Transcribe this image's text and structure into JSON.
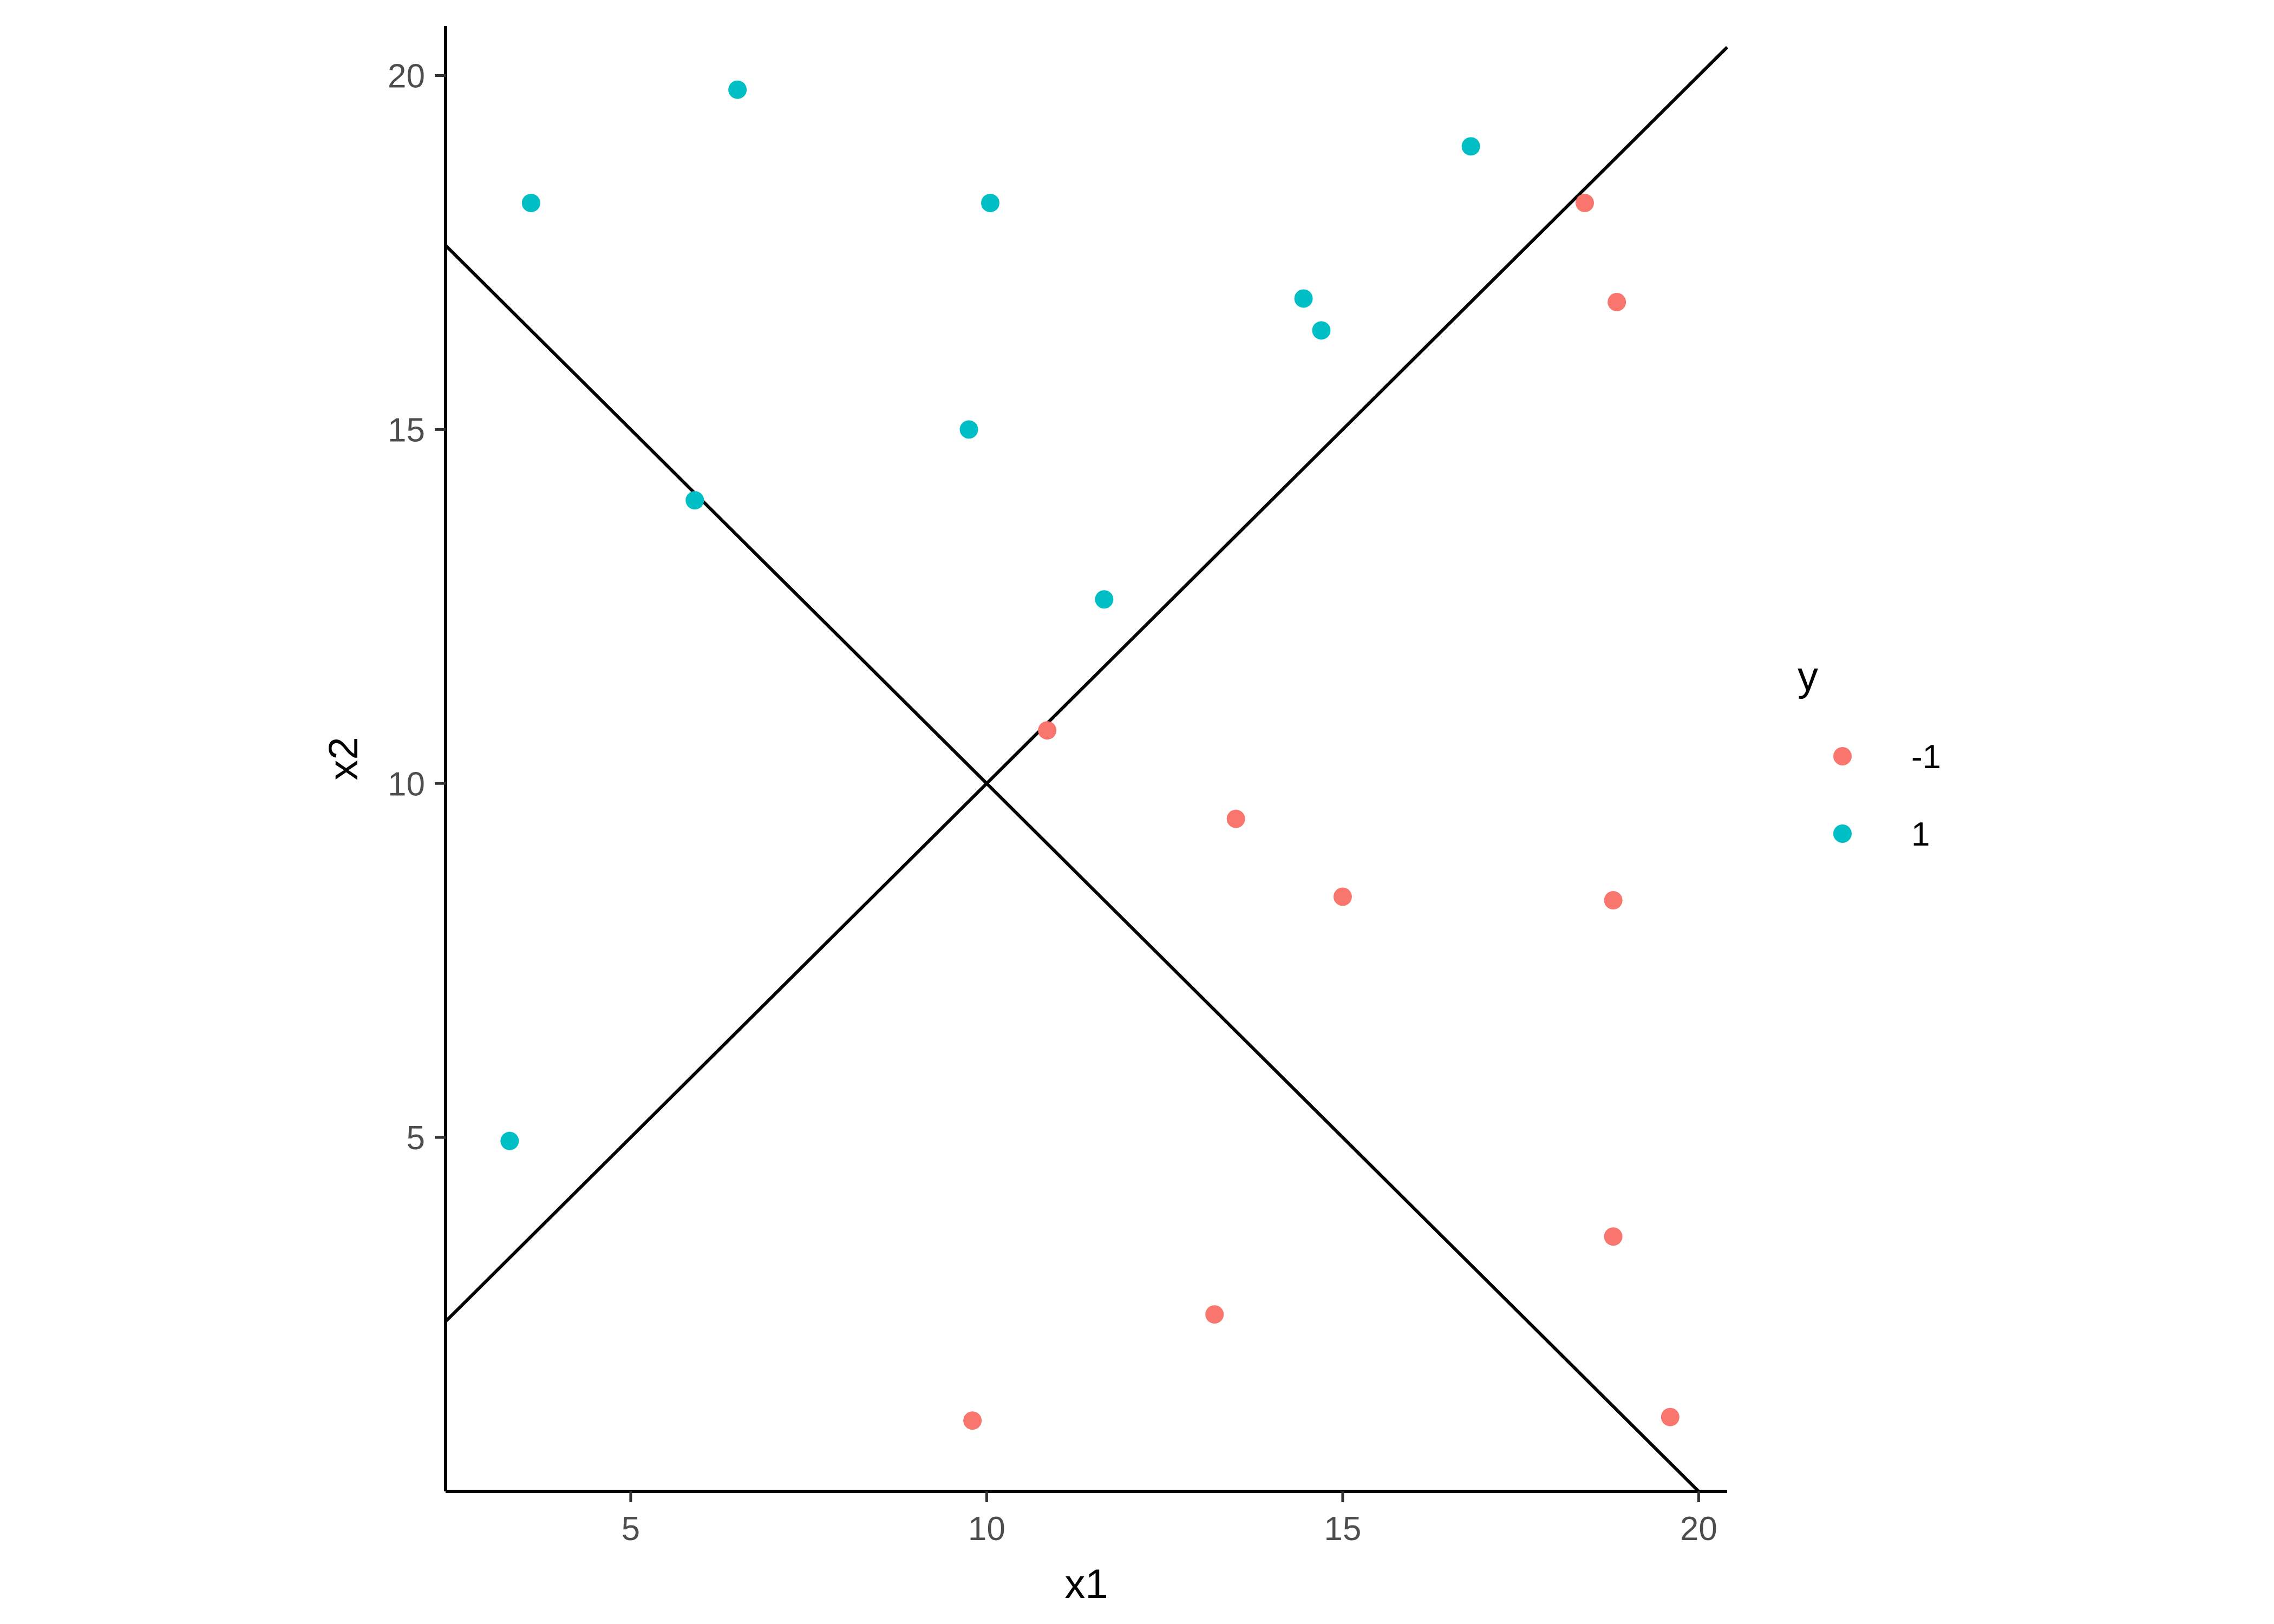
{
  "chart_data": {
    "type": "scatter",
    "title": "",
    "xlabel": "x1",
    "ylabel": "x2",
    "xlim": [
      2.4,
      20.4
    ],
    "ylim": [
      0.0,
      20.7
    ],
    "x_ticks": [
      5,
      10,
      15,
      20
    ],
    "y_ticks": [
      5,
      10,
      15,
      20
    ],
    "grid": false,
    "legend": {
      "title": "y",
      "placement": "right"
    },
    "series": [
      {
        "name": "-1",
        "color": "#F8766D",
        "points": [
          [
            10.85,
            10.75
          ],
          [
            13.5,
            9.5
          ],
          [
            15.0,
            8.4
          ],
          [
            18.8,
            8.35
          ],
          [
            18.4,
            18.2
          ],
          [
            18.85,
            16.8
          ],
          [
            18.8,
            3.6
          ],
          [
            13.2,
            2.5
          ],
          [
            9.8,
            1.0
          ],
          [
            19.6,
            1.05
          ]
        ]
      },
      {
        "name": "1",
        "color": "#00BFC4",
        "points": [
          [
            3.6,
            18.2
          ],
          [
            6.5,
            19.8
          ],
          [
            10.05,
            18.2
          ],
          [
            16.8,
            19.0
          ],
          [
            14.45,
            16.85
          ],
          [
            14.7,
            16.4
          ],
          [
            9.75,
            15.0
          ],
          [
            5.9,
            14.0
          ],
          [
            11.65,
            12.6
          ],
          [
            3.3,
            4.95
          ]
        ]
      }
    ],
    "lines": [
      {
        "slope": 1,
        "intercept": 0,
        "color": "#000000"
      },
      {
        "slope": -1,
        "intercept": 20,
        "color": "#000000"
      }
    ]
  }
}
